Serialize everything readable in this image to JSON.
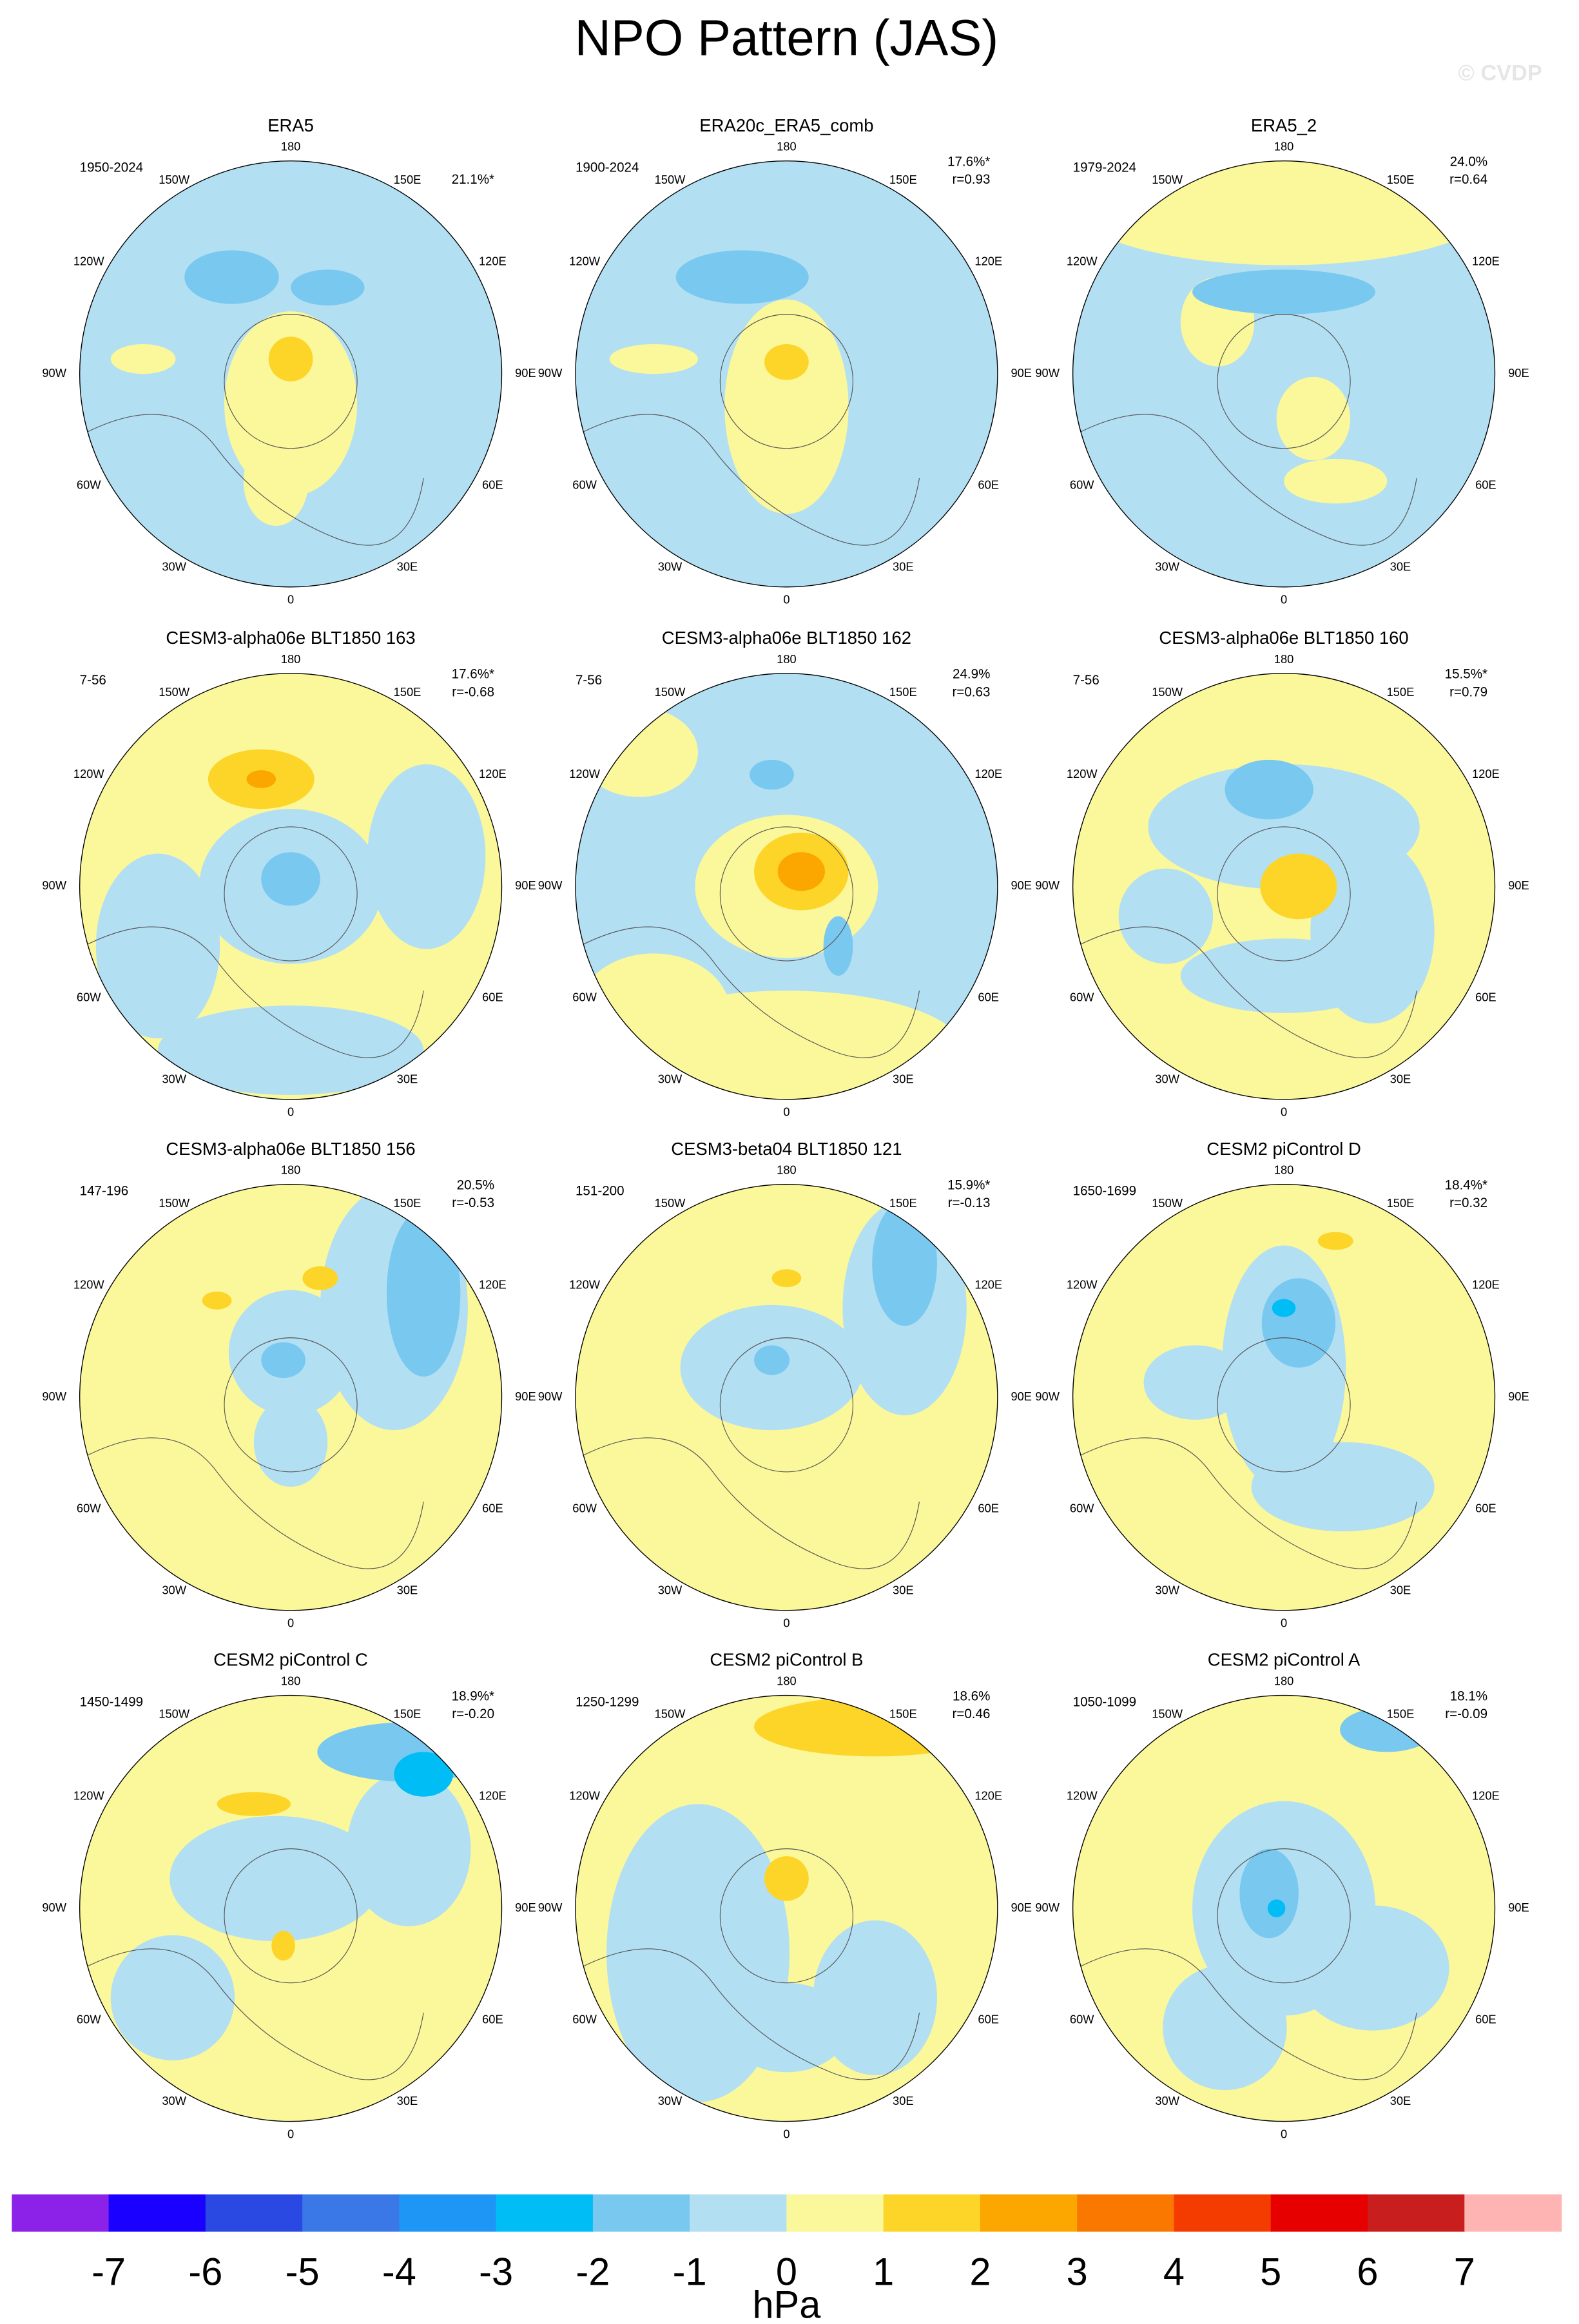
{
  "title": "NPO Pattern (JAS)",
  "watermark": "© CVDP",
  "longitude_labels": [
    "180",
    "150E",
    "120E",
    "90E",
    "60E",
    "30E",
    "0",
    "30W",
    "60W",
    "90W",
    "120W",
    "150W"
  ],
  "panels": [
    {
      "title": "ERA5",
      "period": "1950-2024",
      "pct": "21.1%*"
    },
    {
      "title": "ERA20c_ERA5_comb",
      "period": "1900-2024",
      "pct": "17.6%*",
      "r": "r=0.93"
    },
    {
      "title": "ERA5_2",
      "period": "1979-2024",
      "pct": "24.0%",
      "r": "r=0.64"
    },
    {
      "title": "CESM3-alpha06e BLT1850 163",
      "period": "7-56",
      "pct": "17.6%*",
      "r": "r=-0.68"
    },
    {
      "title": "CESM3-alpha06e BLT1850 162",
      "period": "7-56",
      "pct": "24.9%",
      "r": "r=0.63"
    },
    {
      "title": "CESM3-alpha06e BLT1850 160",
      "period": "7-56",
      "pct": "15.5%*",
      "r": "r=0.79"
    },
    {
      "title": "CESM3-alpha06e BLT1850 156",
      "period": "147-196",
      "pct": "20.5%",
      "r": "r=-0.53"
    },
    {
      "title": "CESM3-beta04 BLT1850 121",
      "period": "151-200",
      "pct": "15.9%*",
      "r": "r=-0.13"
    },
    {
      "title": "CESM2 piControl D",
      "period": "1650-1699",
      "pct": "18.4%*",
      "r": "r=0.32"
    },
    {
      "title": "CESM2 piControl C",
      "period": "1450-1499",
      "pct": "18.9%*",
      "r": "r=-0.20"
    },
    {
      "title": "CESM2 piControl B",
      "period": "1250-1299",
      "pct": "18.6%",
      "r": "r=0.46"
    },
    {
      "title": "CESM2 piControl A",
      "period": "1050-1099",
      "pct": "18.1%",
      "r": "r=-0.09"
    }
  ],
  "colorbar": {
    "colors": [
      "#8c22e8",
      "#1a00ff",
      "#2a48e2",
      "#3a78e8",
      "#1e96f5",
      "#00bef5",
      "#79c8f0",
      "#b3dff3",
      "#fbf79b",
      "#fdd528",
      "#fca600",
      "#fa7800",
      "#f53c00",
      "#e60000",
      "#c81e1e",
      "#ffb4b4"
    ],
    "ticks": [
      -7,
      -6,
      -5,
      -4,
      -3,
      -2,
      -1,
      0,
      1,
      2,
      3,
      4,
      5,
      6,
      7
    ],
    "unit": "hPa"
  }
}
